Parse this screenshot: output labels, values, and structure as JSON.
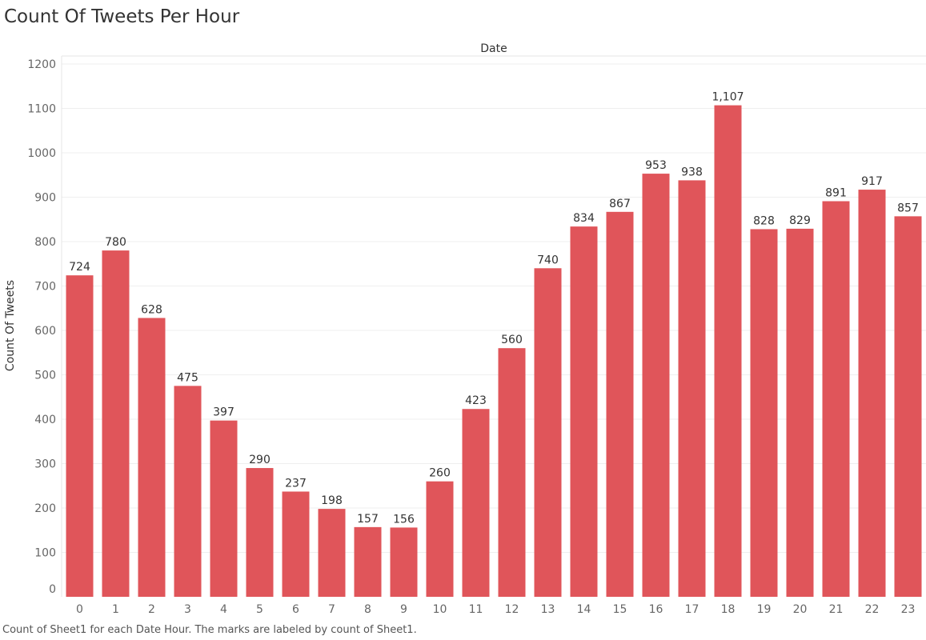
{
  "title": "Count Of Tweets Per Hour",
  "footnote": "Count of Sheet1 for each Date Hour.  The marks are labeled by count of Sheet1.",
  "colors": {
    "bar": "#e0555a",
    "grid": "#efefef",
    "axis_text": "#666666",
    "label_text": "#333333"
  },
  "chart_data": {
    "type": "bar",
    "title": "Count Of Tweets Per Hour",
    "xlabel": "Date",
    "ylabel": "Count Of Tweets",
    "categories": [
      "0",
      "1",
      "2",
      "3",
      "4",
      "5",
      "6",
      "7",
      "8",
      "9",
      "10",
      "11",
      "12",
      "13",
      "14",
      "15",
      "16",
      "17",
      "18",
      "19",
      "20",
      "21",
      "22",
      "23"
    ],
    "values": [
      724,
      780,
      628,
      475,
      397,
      290,
      237,
      198,
      157,
      156,
      260,
      423,
      560,
      740,
      834,
      867,
      953,
      938,
      1107,
      828,
      829,
      891,
      917,
      857
    ],
    "value_labels": [
      "724",
      "780",
      "628",
      "475",
      "397",
      "290",
      "237",
      "198",
      "157",
      "156",
      "260",
      "423",
      "560",
      "740",
      "834",
      "867",
      "953",
      "938",
      "1,107",
      "828",
      "829",
      "891",
      "917",
      "857"
    ],
    "ylim": [
      0,
      1200
    ],
    "yticks": [
      0,
      100,
      200,
      300,
      400,
      500,
      600,
      700,
      800,
      900,
      1000,
      1100,
      1200
    ],
    "ytick_labels": [
      "0",
      "100",
      "200",
      "300",
      "400",
      "500",
      "600",
      "700",
      "800",
      "900",
      "1000",
      "1100",
      "1200"
    ],
    "grid": true,
    "legend": "none"
  }
}
